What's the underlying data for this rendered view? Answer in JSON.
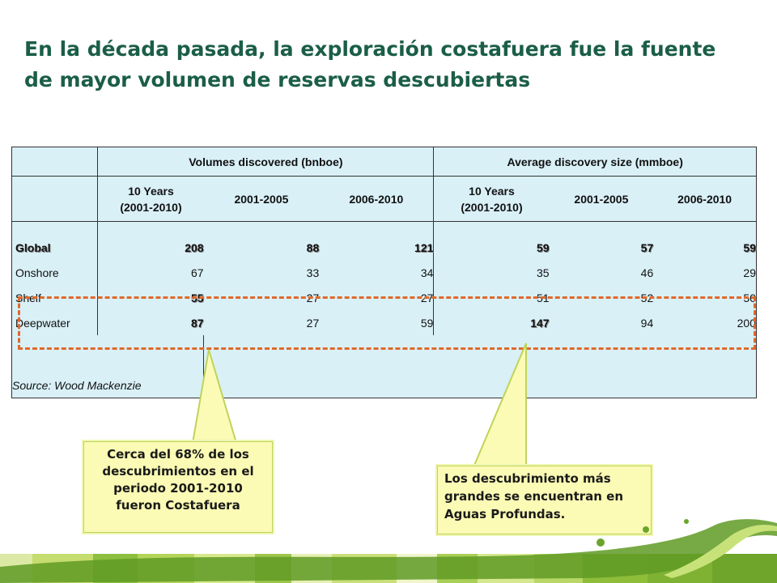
{
  "title": "En la década pasada, la exploración costafuera fue la fuente de mayor volumen de reservas descubiertas",
  "table": {
    "group_headers": [
      "Volumes discovered (bnboe)",
      "Average discovery size (mmboe)"
    ],
    "sub_headers": [
      [
        "10 Years",
        "(2001-2010)"
      ],
      [
        "2001-2005"
      ],
      [
        "2006-2010"
      ],
      [
        "10 Years",
        "(2001-2010)"
      ],
      [
        "2001-2005"
      ],
      [
        "2006-2010"
      ]
    ],
    "rows": [
      {
        "label": "Global",
        "values": [
          "208",
          "88",
          "121",
          "59",
          "57",
          "59"
        ]
      },
      {
        "label": "Onshore",
        "values": [
          "67",
          "33",
          "34",
          "35",
          "46",
          "29"
        ]
      },
      {
        "label": "Shelf",
        "values": [
          "55",
          "27",
          "27",
          "51",
          "52",
          "50"
        ]
      },
      {
        "label": "Deepwater",
        "values": [
          "87",
          "27",
          "59",
          "147",
          "94",
          "200"
        ]
      }
    ],
    "source": "Source: Wood Mackenzie"
  },
  "callouts": {
    "left": [
      "Cerca del 68% de los",
      "descubrimientos en el",
      "periodo 2001-2010",
      "fueron Costafuera"
    ],
    "right": [
      "Los descubrimiento más",
      "grandes se encuentran en",
      "Aguas Profundas."
    ]
  },
  "colors": {
    "title": "#1b5e47",
    "table_background": "#d9f0f7",
    "dash_highlight": "#e06a2a",
    "callout_fill": "#fbfbb5",
    "callout_border": "#bfd35a"
  }
}
